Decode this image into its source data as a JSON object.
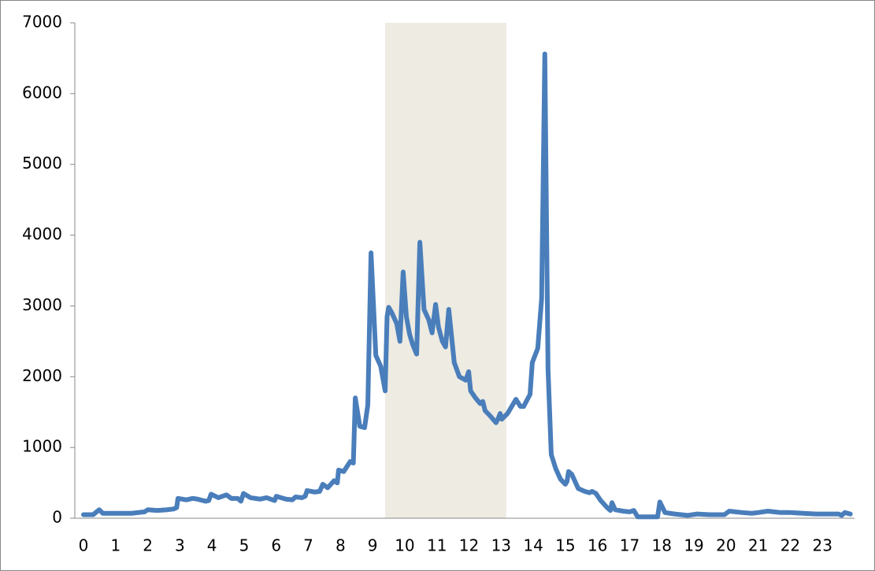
{
  "chart_data": {
    "type": "line",
    "x": [
      0,
      0.3,
      0.49,
      0.6,
      1,
      1.5,
      1.9,
      2.0,
      2.3,
      2.6,
      2.8,
      2.9,
      2.94,
      3.2,
      3.4,
      3.55,
      3.8,
      3.9,
      3.97,
      4.2,
      4.45,
      4.6,
      4.8,
      4.9,
      4.98,
      5.2,
      5.5,
      5.7,
      5.95,
      6.0,
      6.3,
      6.5,
      6.6,
      6.8,
      6.9,
      6.96,
      7.2,
      7.35,
      7.45,
      7.6,
      7.8,
      7.9,
      7.94,
      8.1,
      8.3,
      8.4,
      8.46,
      8.6,
      8.75,
      8.85,
      8.95,
      9.1,
      9.25,
      9.39,
      9.45,
      9.5,
      9.6,
      9.75,
      9.85,
      9.95,
      10.05,
      10.15,
      10.25,
      10.37,
      10.47,
      10.6,
      10.75,
      10.85,
      10.96,
      11.05,
      11.17,
      11.27,
      11.37,
      11.45,
      11.54,
      11.7,
      11.9,
      11.99,
      12.05,
      12.2,
      12.35,
      12.43,
      12.5,
      12.65,
      12.84,
      12.9,
      12.97,
      13.02,
      13.2,
      13.46,
      13.6,
      13.7,
      13.9,
      13.97,
      14.14,
      14.26,
      14.36,
      14.46,
      14.56,
      14.7,
      14.85,
      15.0,
      15.05,
      15.1,
      15.2,
      15.4,
      15.6,
      15.75,
      15.83,
      15.95,
      16.1,
      16.3,
      16.4,
      16.45,
      16.55,
      16.8,
      17.0,
      17.13,
      17.25,
      17.5,
      17.87,
      17.94,
      18.1,
      18.4,
      18.8,
      19.1,
      19.5,
      19.95,
      20.1,
      20.5,
      20.8,
      21.0,
      21.3,
      21.7,
      22.0,
      22.4,
      22.8,
      23.2,
      23.5,
      23.6,
      23.7,
      23.87
    ],
    "series": [
      {
        "color": "#4a7ebb",
        "values": [
          50,
          50,
          120,
          70,
          70,
          70,
          90,
          120,
          110,
          120,
          130,
          150,
          280,
          260,
          280,
          270,
          240,
          250,
          340,
          290,
          330,
          280,
          280,
          240,
          350,
          290,
          270,
          290,
          250,
          310,
          270,
          260,
          300,
          290,
          310,
          390,
          370,
          380,
          480,
          430,
          530,
          500,
          680,
          660,
          800,
          780,
          1700,
          1300,
          1280,
          1600,
          3750,
          2300,
          2150,
          1800,
          2850,
          2980,
          2900,
          2750,
          2500,
          3480,
          2850,
          2600,
          2450,
          2320,
          3900,
          2950,
          2800,
          2620,
          3020,
          2700,
          2500,
          2420,
          2950,
          2600,
          2200,
          2000,
          1950,
          2070,
          1800,
          1700,
          1620,
          1650,
          1520,
          1450,
          1350,
          1400,
          1480,
          1400,
          1480,
          1680,
          1580,
          1580,
          1750,
          2200,
          2400,
          3100,
          6560,
          2100,
          900,
          700,
          550,
          480,
          520,
          660,
          620,
          420,
          380,
          360,
          380,
          350,
          250,
          150,
          110,
          220,
          120,
          100,
          90,
          110,
          20,
          20,
          20,
          230,
          80,
          60,
          40,
          60,
          50,
          50,
          100,
          80,
          70,
          80,
          100,
          80,
          80,
          70,
          60,
          60,
          60,
          40,
          80,
          60
        ]
      }
    ],
    "xlim": [
      -0.27,
      24.0
    ],
    "xticks": [
      0,
      1,
      2,
      3,
      4,
      5,
      6,
      7,
      8,
      9,
      10,
      11,
      12,
      13,
      14,
      15,
      16,
      17,
      18,
      19,
      20,
      21,
      22,
      23
    ],
    "ylim": [
      0,
      7000
    ],
    "yticks": [
      0,
      1000,
      2000,
      3000,
      4000,
      5000,
      6000,
      7000
    ],
    "band": [
      9.39,
      13.16
    ],
    "band_color": "#eeebe2"
  }
}
